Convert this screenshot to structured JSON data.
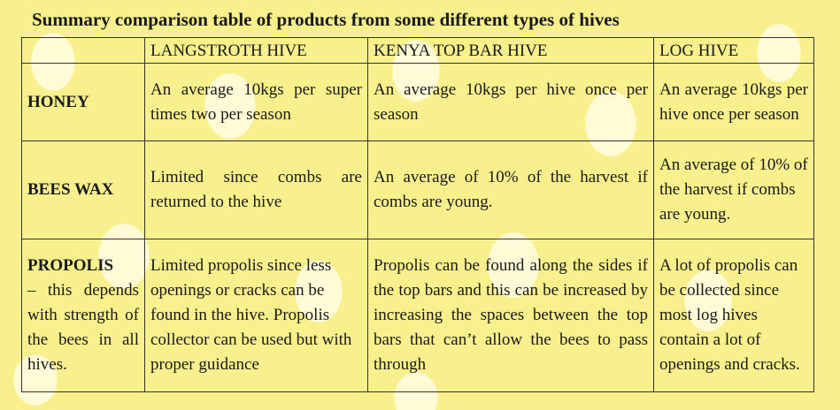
{
  "title": "Summary comparison table of products from some different types of hives",
  "table": {
    "headers": [
      "",
      "LANGSTROTH HIVE",
      "KENYA TOP BAR HIVE",
      "LOG HIVE"
    ],
    "rows": [
      {
        "label": "HONEY",
        "note": "",
        "cells": [
          "An average 10kgs per super times two per season",
          "An average 10kgs per hive once per season",
          "An average 10kgs per hive once per season"
        ]
      },
      {
        "label": "BEES WAX",
        "note": "",
        "cells": [
          "Limited since combs are returned to the hive",
          "An average of 10% of the harvest if combs are young.",
          "An average of 10% of the harvest if combs are young."
        ]
      },
      {
        "label": "PROPOLIS",
        "note": "– this depends with strength of the bees in all hives.",
        "cells": [
          "Limited propolis since less openings or cracks can be found in the hive. Propolis collector can be used but with proper guidance",
          "Propolis can be found along the sides if the top bars and this can be increased by increasing the spaces between the top bars that can’t allow the bees to pass through",
          "A lot of propolis can be collected since most log hives contain a lot of openings and cracks."
        ]
      }
    ]
  }
}
